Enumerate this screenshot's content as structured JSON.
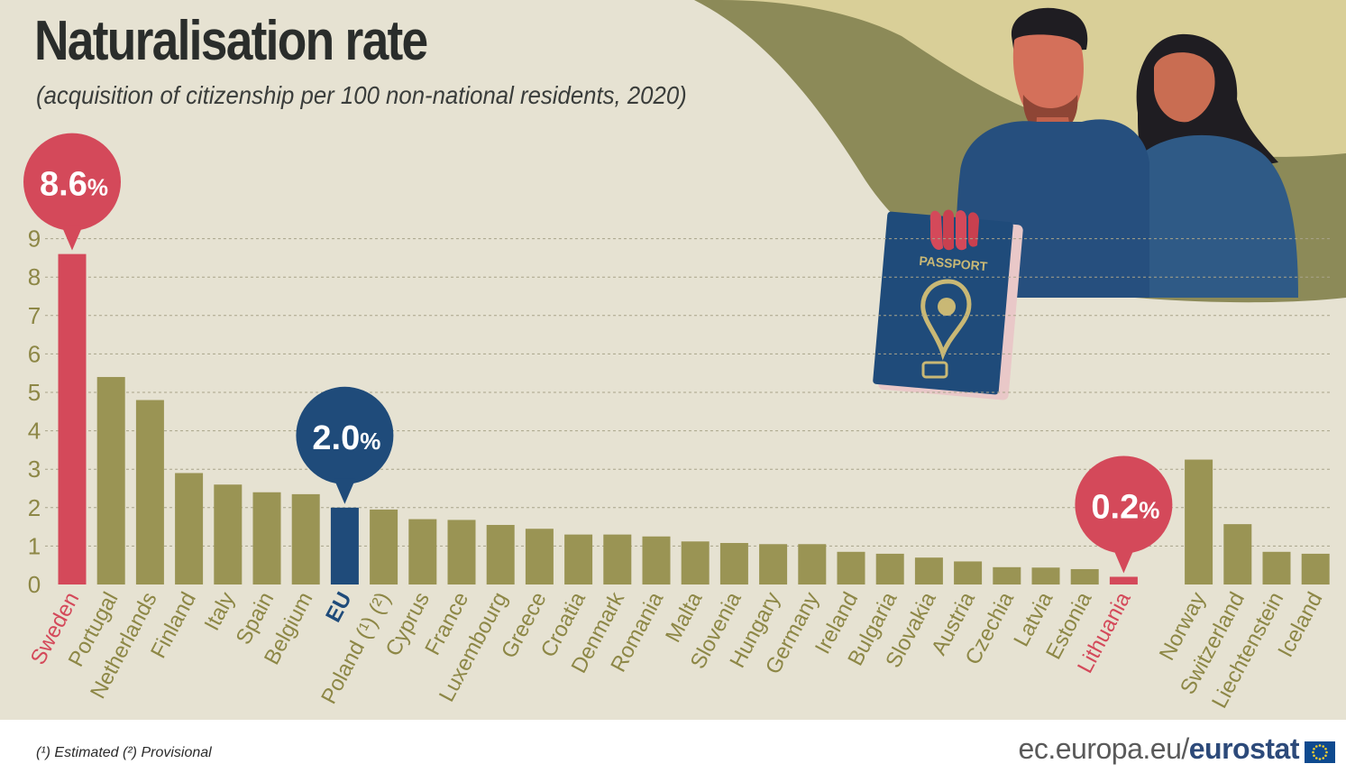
{
  "header": {
    "title": "Naturalisation rate",
    "subtitle": "(acquisition of citizenship per 100  non-national residents, 2020)"
  },
  "footer": {
    "notes": "(¹) Estimated    (²) Provisional",
    "source_domain": "ec.europa.eu/",
    "source_brand": "eurostat"
  },
  "illustration": {
    "passport_label": "PASSPORT"
  },
  "colors": {
    "bar_default": "#9a9454",
    "bar_highlight_red": "#d4495a",
    "bar_highlight_eu": "#1f4b7a",
    "label_default": "#8d8746",
    "background": "#e6e2d2"
  },
  "callouts": [
    {
      "category": "Sweden",
      "text": "8.6",
      "unit": "%",
      "color": "#d4495a"
    },
    {
      "category": "EU",
      "text": "2.0",
      "unit": "%",
      "color": "#1f4b7a"
    },
    {
      "category": "Lithuania",
      "text": "0.2",
      "unit": "%",
      "color": "#d4495a"
    }
  ],
  "chart_data": {
    "type": "bar",
    "title": "Naturalisation rate",
    "subtitle": "(acquisition of citizenship per 100  non-national residents, 2020)",
    "xlabel": "",
    "ylabel": "",
    "ylim": [
      0,
      9
    ],
    "yticks": [
      0,
      1,
      2,
      3,
      4,
      5,
      6,
      7,
      8,
      9
    ],
    "grid": true,
    "categories": [
      "Sweden",
      "Portugal",
      "Netherlands",
      "Finland",
      "Italy",
      "Spain",
      "Belgium",
      "EU",
      "Poland (¹) (²)",
      "Cyprus",
      "France",
      "Luxembourg",
      "Greece",
      "Croatia",
      "Denmark",
      "Romania",
      "Malta",
      "Slovenia",
      "Hungary",
      "Germany",
      "Ireland",
      "Bulgaria",
      "Slovakia",
      "Austria",
      "Czechia",
      "Latvia",
      "Estonia",
      "Lithuania",
      "Norway",
      "Switzerland",
      "Liechtenstein",
      "Iceland"
    ],
    "values": [
      8.6,
      5.4,
      4.8,
      2.9,
      2.6,
      2.4,
      2.35,
      2.0,
      1.95,
      1.7,
      1.68,
      1.55,
      1.45,
      1.3,
      1.3,
      1.25,
      1.12,
      1.08,
      1.05,
      1.05,
      0.85,
      0.8,
      0.7,
      0.6,
      0.45,
      0.44,
      0.4,
      0.2,
      3.25,
      1.57,
      0.85,
      0.8
    ],
    "highlight": {
      "Sweden": "red",
      "EU": "blue",
      "Lithuania": "red"
    },
    "group_break_after": "Lithuania"
  }
}
